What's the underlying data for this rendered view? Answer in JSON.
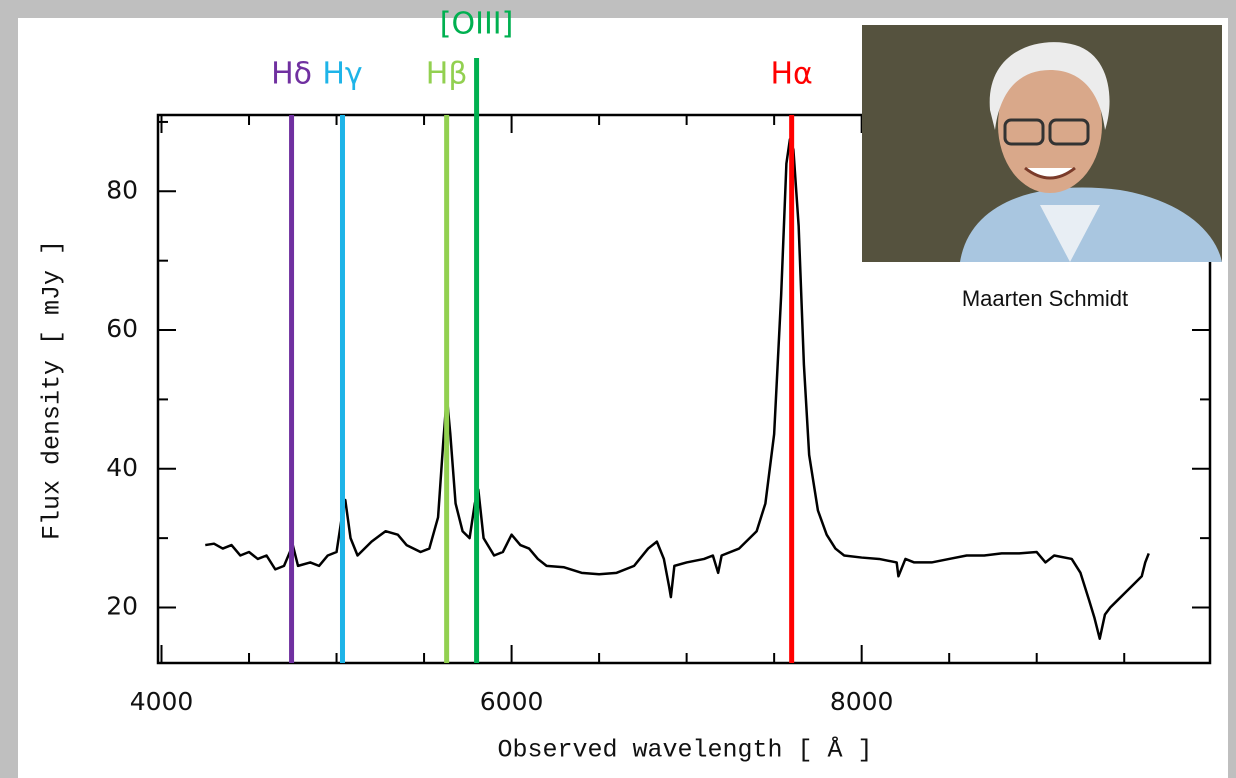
{
  "chart_data": {
    "type": "line",
    "xlabel": "Observed wavelength [ Å ]",
    "ylabel": "Flux density [ mJy ]",
    "xlim": [
      3980,
      9990
    ],
    "ylim": [
      12,
      91
    ],
    "xticks": [
      4000,
      6000,
      8000
    ],
    "xminorticks": [
      4500,
      5000,
      5500,
      6500,
      7000,
      7500,
      8500,
      9000,
      9500
    ],
    "yticks": [
      20,
      40,
      60,
      80
    ],
    "yminorticks": [
      30,
      50,
      70,
      90
    ],
    "x": [
      4250,
      4300,
      4350,
      4400,
      4450,
      4500,
      4550,
      4600,
      4650,
      4700,
      4750,
      4780,
      4850,
      4900,
      4950,
      5000,
      5030,
      5050,
      5080,
      5120,
      5200,
      5280,
      5350,
      5400,
      5480,
      5530,
      5580,
      5610,
      5630,
      5650,
      5680,
      5720,
      5760,
      5790,
      5810,
      5840,
      5900,
      5950,
      6000,
      6050,
      6100,
      6150,
      6200,
      6300,
      6400,
      6500,
      6600,
      6700,
      6780,
      6830,
      6870,
      6900,
      6910,
      6930,
      7000,
      7100,
      7150,
      7180,
      7200,
      7300,
      7400,
      7450,
      7500,
      7540,
      7570,
      7590,
      7610,
      7640,
      7670,
      7700,
      7750,
      7800,
      7850,
      7900,
      8000,
      8100,
      8200,
      8210,
      8250,
      8300,
      8400,
      8500,
      8600,
      8700,
      8800,
      8900,
      9000,
      9050,
      9100,
      9200,
      9250,
      9300,
      9330,
      9360,
      9390,
      9420,
      9460,
      9500,
      9560,
      9600,
      9620,
      9640
    ],
    "series": [
      {
        "color": "#000000",
        "values": [
          29,
          29.2,
          28.5,
          29,
          27.5,
          28,
          27,
          27.5,
          25.5,
          26,
          29,
          26,
          26.5,
          26,
          27.5,
          28,
          33,
          35.5,
          30,
          27.5,
          29.5,
          31,
          30.5,
          29,
          28,
          28.5,
          33,
          44,
          50.5,
          45,
          35,
          31,
          30,
          35,
          37,
          30,
          27.5,
          28,
          30.5,
          29,
          28.5,
          27,
          26,
          25.8,
          25,
          24.8,
          25,
          26,
          28.5,
          29.5,
          27,
          23,
          21.5,
          26,
          26.5,
          27,
          27.5,
          25,
          27.5,
          28.5,
          31,
          35,
          45,
          65,
          84,
          87.5,
          86,
          75,
          55,
          42,
          34,
          30.5,
          28.5,
          27.5,
          27.2,
          27,
          26.5,
          24.5,
          27,
          26.5,
          26.5,
          27,
          27.5,
          27.5,
          27.8,
          27.8,
          28,
          26.5,
          27.5,
          27,
          25,
          21,
          18.5,
          15.5,
          19,
          20,
          21,
          22,
          23.5,
          24.5,
          26.5,
          27.8
        ]
      }
    ],
    "markers": [
      {
        "label": "Hδ",
        "x": 4743,
        "color": "#7030a0"
      },
      {
        "label": "Hγ",
        "x": 5034,
        "color": "#1eb4e8"
      },
      {
        "label": "Hβ",
        "x": 5629,
        "color": "#92d050"
      },
      {
        "label": "[OIII]",
        "x": 5800,
        "color": "#00b050"
      },
      {
        "label": "Hα",
        "x": 7600,
        "color": "#ff0000"
      }
    ],
    "photo_caption": "Maarten Schmidt"
  }
}
